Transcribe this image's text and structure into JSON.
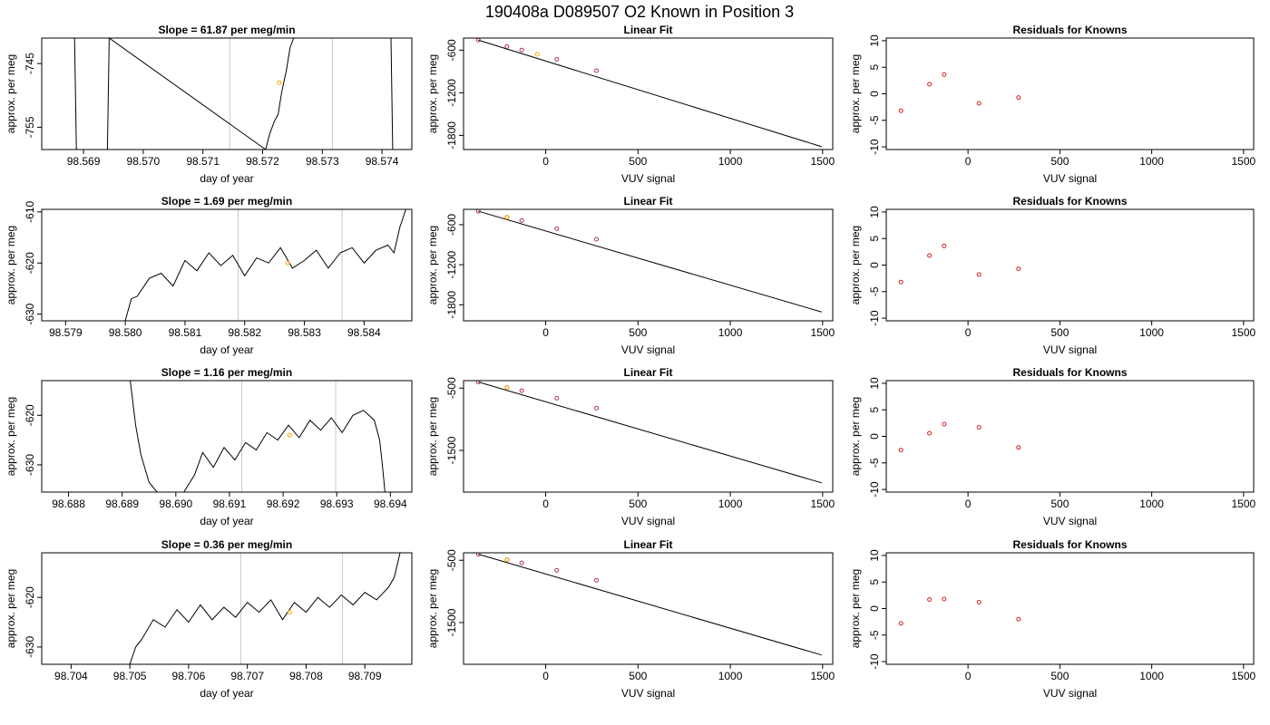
{
  "figure_title": "190408a      D089507   O2 Known in Position  3",
  "colors": {
    "trace": "#000000",
    "guide": "#c8c8c8",
    "highlight": "#ffa500",
    "residual": "#d62020",
    "fitpoint": "#b03060"
  },
  "chart_data": [
    {
      "type": "line",
      "title": "Slope =  61.87  per meg/min",
      "xlabel": "day of year",
      "ylabel": "approx. per meg",
      "xlim": [
        98.5683,
        98.5745
      ],
      "ylim": [
        -758.5,
        -741.0
      ],
      "xticks": [
        "98.569",
        "98.570",
        "98.571",
        "98.572",
        "98.573",
        "98.574"
      ],
      "yticks": [
        "-745",
        "-755"
      ],
      "vlines": [
        98.57145,
        98.57317
      ],
      "highlight_point": {
        "x": 98.57228,
        "y": -748.0
      },
      "x": [
        98.56885,
        98.56888,
        98.5694,
        98.56943,
        98.57205,
        98.57212,
        98.5722,
        98.57226,
        98.57232,
        98.5724,
        98.57246,
        98.57252,
        98.57415,
        98.57418
      ],
      "y": [
        -741.0,
        -758.5,
        -758.5,
        -741.0,
        -758.5,
        -756.0,
        -754.0,
        -753.0,
        -749.5,
        -746.0,
        -742.5,
        -741.0,
        -741.0,
        -758.5
      ]
    },
    {
      "type": "scatter",
      "title": "Linear Fit",
      "xlabel": "VUV signal",
      "ylabel": "approx. per meg",
      "xlim": [
        -445,
        1555
      ],
      "ylim": [
        -1999,
        -430
      ],
      "xticks": [
        "0",
        "500",
        "1000",
        "1500"
      ],
      "yticks": [
        "-600",
        "-1200",
        "-1800"
      ],
      "x": [
        -365,
        -210,
        -130,
        60,
        275
      ],
      "y": [
        -459,
        -549,
        -599,
        -729,
        -889
      ],
      "highlight_point": {
        "x": -45,
        "y": -659
      },
      "fit_line": {
        "x0": -365,
        "y0": -459,
        "x1": 1495,
        "y1": -1959
      }
    },
    {
      "type": "scatter",
      "title": "Residuals for Knowns",
      "xlabel": "VUV signal",
      "ylabel": "approx. per meg",
      "xlim": [
        -445,
        1555
      ],
      "ylim": [
        -10.5,
        10.5
      ],
      "xticks": [
        "0",
        "500",
        "1000",
        "1500"
      ],
      "yticks": [
        "10",
        "5",
        "0",
        "-5",
        "-10"
      ],
      "x": [
        -365,
        -210,
        -130,
        60,
        275
      ],
      "y": [
        -3.2,
        1.8,
        3.6,
        -1.8,
        -0.7
      ]
    },
    {
      "type": "line",
      "title": "Slope =  1.69  per meg/min",
      "xlabel": "day of year",
      "ylabel": "approx. per meg",
      "xlim": [
        98.5786,
        98.5848
      ],
      "ylim": [
        -631.3,
        -609.5
      ],
      "xticks": [
        "98.579",
        "98.580",
        "98.581",
        "98.582",
        "98.583",
        "98.584"
      ],
      "yticks": [
        "-610",
        "-620",
        "-630"
      ],
      "vlines": [
        98.58189,
        98.58363
      ],
      "highlight_point": {
        "x": 98.58272,
        "y": -620.0
      },
      "x": [
        98.58,
        98.5801,
        98.5802,
        98.5804,
        98.5806,
        98.5808,
        98.581,
        98.5812,
        98.5814,
        98.5816,
        98.5818,
        98.582,
        98.5822,
        98.5824,
        98.5826,
        98.5828,
        98.583,
        98.5832,
        98.5834,
        98.5836,
        98.5838,
        98.584,
        98.5842,
        98.5844,
        98.5845,
        98.5846,
        98.5847
      ],
      "y": [
        -631.3,
        -627.0,
        -626.5,
        -623.0,
        -622.0,
        -624.5,
        -619.5,
        -621.5,
        -618.0,
        -620.5,
        -618.5,
        -622.5,
        -619.0,
        -620.0,
        -617.0,
        -621.0,
        -619.5,
        -617.5,
        -621.0,
        -618.0,
        -617.0,
        -620.0,
        -617.5,
        -616.5,
        -618.0,
        -613.0,
        -609.5
      ]
    },
    {
      "type": "scatter",
      "title": "Linear Fit",
      "xlabel": "VUV signal",
      "ylabel": "approx. per meg",
      "xlim": [
        -445,
        1555
      ],
      "ylim": [
        -2040,
        -370
      ],
      "xticks": [
        "0",
        "500",
        "1000",
        "1500"
      ],
      "yticks": [
        "-600",
        "-1200",
        "-1800"
      ],
      "x": [
        -365,
        -210,
        -130,
        60,
        275
      ],
      "y": [
        -398,
        -488,
        -538,
        -658,
        -818
      ],
      "highlight_point": {
        "x": -210,
        "y": -488
      },
      "fit_line": {
        "x0": -365,
        "y0": -398,
        "x1": 1495,
        "y1": -1908
      }
    },
    {
      "type": "scatter",
      "title": "Residuals for Knowns",
      "xlabel": "VUV signal",
      "ylabel": "approx. per meg",
      "xlim": [
        -445,
        1555
      ],
      "ylim": [
        -10.5,
        10.5
      ],
      "xticks": [
        "0",
        "500",
        "1000",
        "1500"
      ],
      "yticks": [
        "10",
        "5",
        "0",
        "-5",
        "-10"
      ],
      "x": [
        -365,
        -210,
        -130,
        60,
        275
      ],
      "y": [
        -3.2,
        1.8,
        3.6,
        -1.8,
        -0.7
      ]
    },
    {
      "type": "line",
      "title": "Slope =  1.16  per meg/min",
      "xlabel": "day of year",
      "ylabel": "approx. per meg",
      "xlim": [
        98.6875,
        98.6944
      ],
      "ylim": [
        -635.5,
        -613.0
      ],
      "xticks": [
        "98.688",
        "98.689",
        "98.690",
        "98.691",
        "98.692",
        "98.693",
        "98.694"
      ],
      "yticks": [
        "-620",
        "-630"
      ],
      "vlines": [
        98.69123,
        98.69298
      ],
      "highlight_point": {
        "x": 98.69212,
        "y": -624.0
      },
      "x": [
        98.68915,
        98.68925,
        98.68935,
        98.6895,
        98.68965,
        98.69015,
        98.69035,
        98.6905,
        98.6907,
        98.6909,
        98.6911,
        98.6913,
        98.6915,
        98.6917,
        98.6919,
        98.6921,
        98.6923,
        98.6925,
        98.6927,
        98.6929,
        98.6931,
        98.6933,
        98.6935,
        98.6937,
        98.6938,
        98.69385,
        98.6939
      ],
      "y": [
        -613.0,
        -622.0,
        -628.0,
        -633.5,
        -635.5,
        -635.5,
        -632.0,
        -627.5,
        -630.5,
        -626.5,
        -629.0,
        -625.5,
        -627.0,
        -623.5,
        -625.0,
        -622.0,
        -624.5,
        -621.0,
        -623.0,
        -620.5,
        -623.5,
        -620.0,
        -619.0,
        -621.0,
        -625.0,
        -630.0,
        -635.5
      ]
    },
    {
      "type": "scatter",
      "title": "Linear Fit",
      "xlabel": "VUV signal",
      "ylabel": "approx. per meg",
      "xlim": [
        -445,
        1555
      ],
      "ylim": [
        -2170,
        -380
      ],
      "xticks": [
        "0",
        "500",
        "1000",
        "1500"
      ],
      "yticks": [
        "-500",
        "-1500"
      ],
      "x": [
        -365,
        -210,
        -130,
        60,
        275
      ],
      "y": [
        -402,
        -492,
        -542,
        -662,
        -822
      ],
      "highlight_point": {
        "x": -210,
        "y": -492
      },
      "fit_line": {
        "x0": -365,
        "y0": -402,
        "x1": 1495,
        "y1": -2022
      }
    },
    {
      "type": "scatter",
      "title": "Residuals for Knowns",
      "xlabel": "VUV signal",
      "ylabel": "approx. per meg",
      "xlim": [
        -445,
        1555
      ],
      "ylim": [
        -10.5,
        10.5
      ],
      "xticks": [
        "0",
        "500",
        "1000",
        "1500"
      ],
      "yticks": [
        "10",
        "5",
        "0",
        "-5",
        "-10"
      ],
      "x": [
        -365,
        -210,
        -130,
        60,
        275
      ],
      "y": [
        -2.6,
        0.6,
        2.3,
        1.7,
        -2.1
      ]
    },
    {
      "type": "line",
      "title": "Slope =  0.36  per meg/min",
      "xlabel": "day of year",
      "ylabel": "approx. per meg",
      "xlim": [
        98.7035,
        98.7098
      ],
      "ylim": [
        -633.5,
        -611.0
      ],
      "xticks": [
        "98.704",
        "98.705",
        "98.706",
        "98.707",
        "98.708",
        "98.709"
      ],
      "yticks": [
        "-620",
        "-630"
      ],
      "vlines": [
        98.70689,
        98.70862
      ],
      "highlight_point": {
        "x": 98.70772,
        "y": -623.0
      },
      "x": [
        98.705,
        98.7051,
        98.7052,
        98.7054,
        98.7056,
        98.7058,
        98.706,
        98.7062,
        98.7064,
        98.7066,
        98.7068,
        98.707,
        98.7072,
        98.7074,
        98.7076,
        98.7078,
        98.708,
        98.7082,
        98.7084,
        98.7086,
        98.7088,
        98.709,
        98.7092,
        98.7094,
        98.7095,
        98.7096
      ],
      "y": [
        -633.5,
        -630.0,
        -628.5,
        -624.5,
        -626.0,
        -622.5,
        -625.0,
        -621.5,
        -624.5,
        -622.0,
        -624.0,
        -621.0,
        -623.0,
        -620.5,
        -624.5,
        -621.0,
        -623.0,
        -620.0,
        -622.0,
        -619.5,
        -621.5,
        -619.0,
        -620.5,
        -618.0,
        -616.0,
        -611.0
      ]
    },
    {
      "type": "scatter",
      "title": "Linear Fit",
      "xlabel": "VUV signal",
      "ylabel": "approx. per meg",
      "xlim": [
        -445,
        1555
      ],
      "ylim": [
        -2170,
        -380
      ],
      "xticks": [
        "0",
        "500",
        "1000",
        "1500"
      ],
      "yticks": [
        "-500",
        "-1500"
      ],
      "x": [
        -365,
        -210,
        -130,
        60,
        275
      ],
      "y": [
        -402,
        -492,
        -542,
        -662,
        -822
      ],
      "highlight_point": {
        "x": -210,
        "y": -492
      },
      "fit_line": {
        "x0": -365,
        "y0": -402,
        "x1": 1495,
        "y1": -2022
      }
    },
    {
      "type": "scatter",
      "title": "Residuals for Knowns",
      "xlabel": "VUV signal",
      "ylabel": "approx. per meg",
      "xlim": [
        -445,
        1555
      ],
      "ylim": [
        -10.5,
        10.5
      ],
      "xticks": [
        "0",
        "500",
        "1000",
        "1500"
      ],
      "yticks": [
        "10",
        "5",
        "0",
        "-5",
        "-10"
      ],
      "x": [
        -365,
        -210,
        -130,
        60,
        275
      ],
      "y": [
        -2.8,
        1.7,
        1.8,
        1.2,
        -2.0
      ]
    }
  ]
}
